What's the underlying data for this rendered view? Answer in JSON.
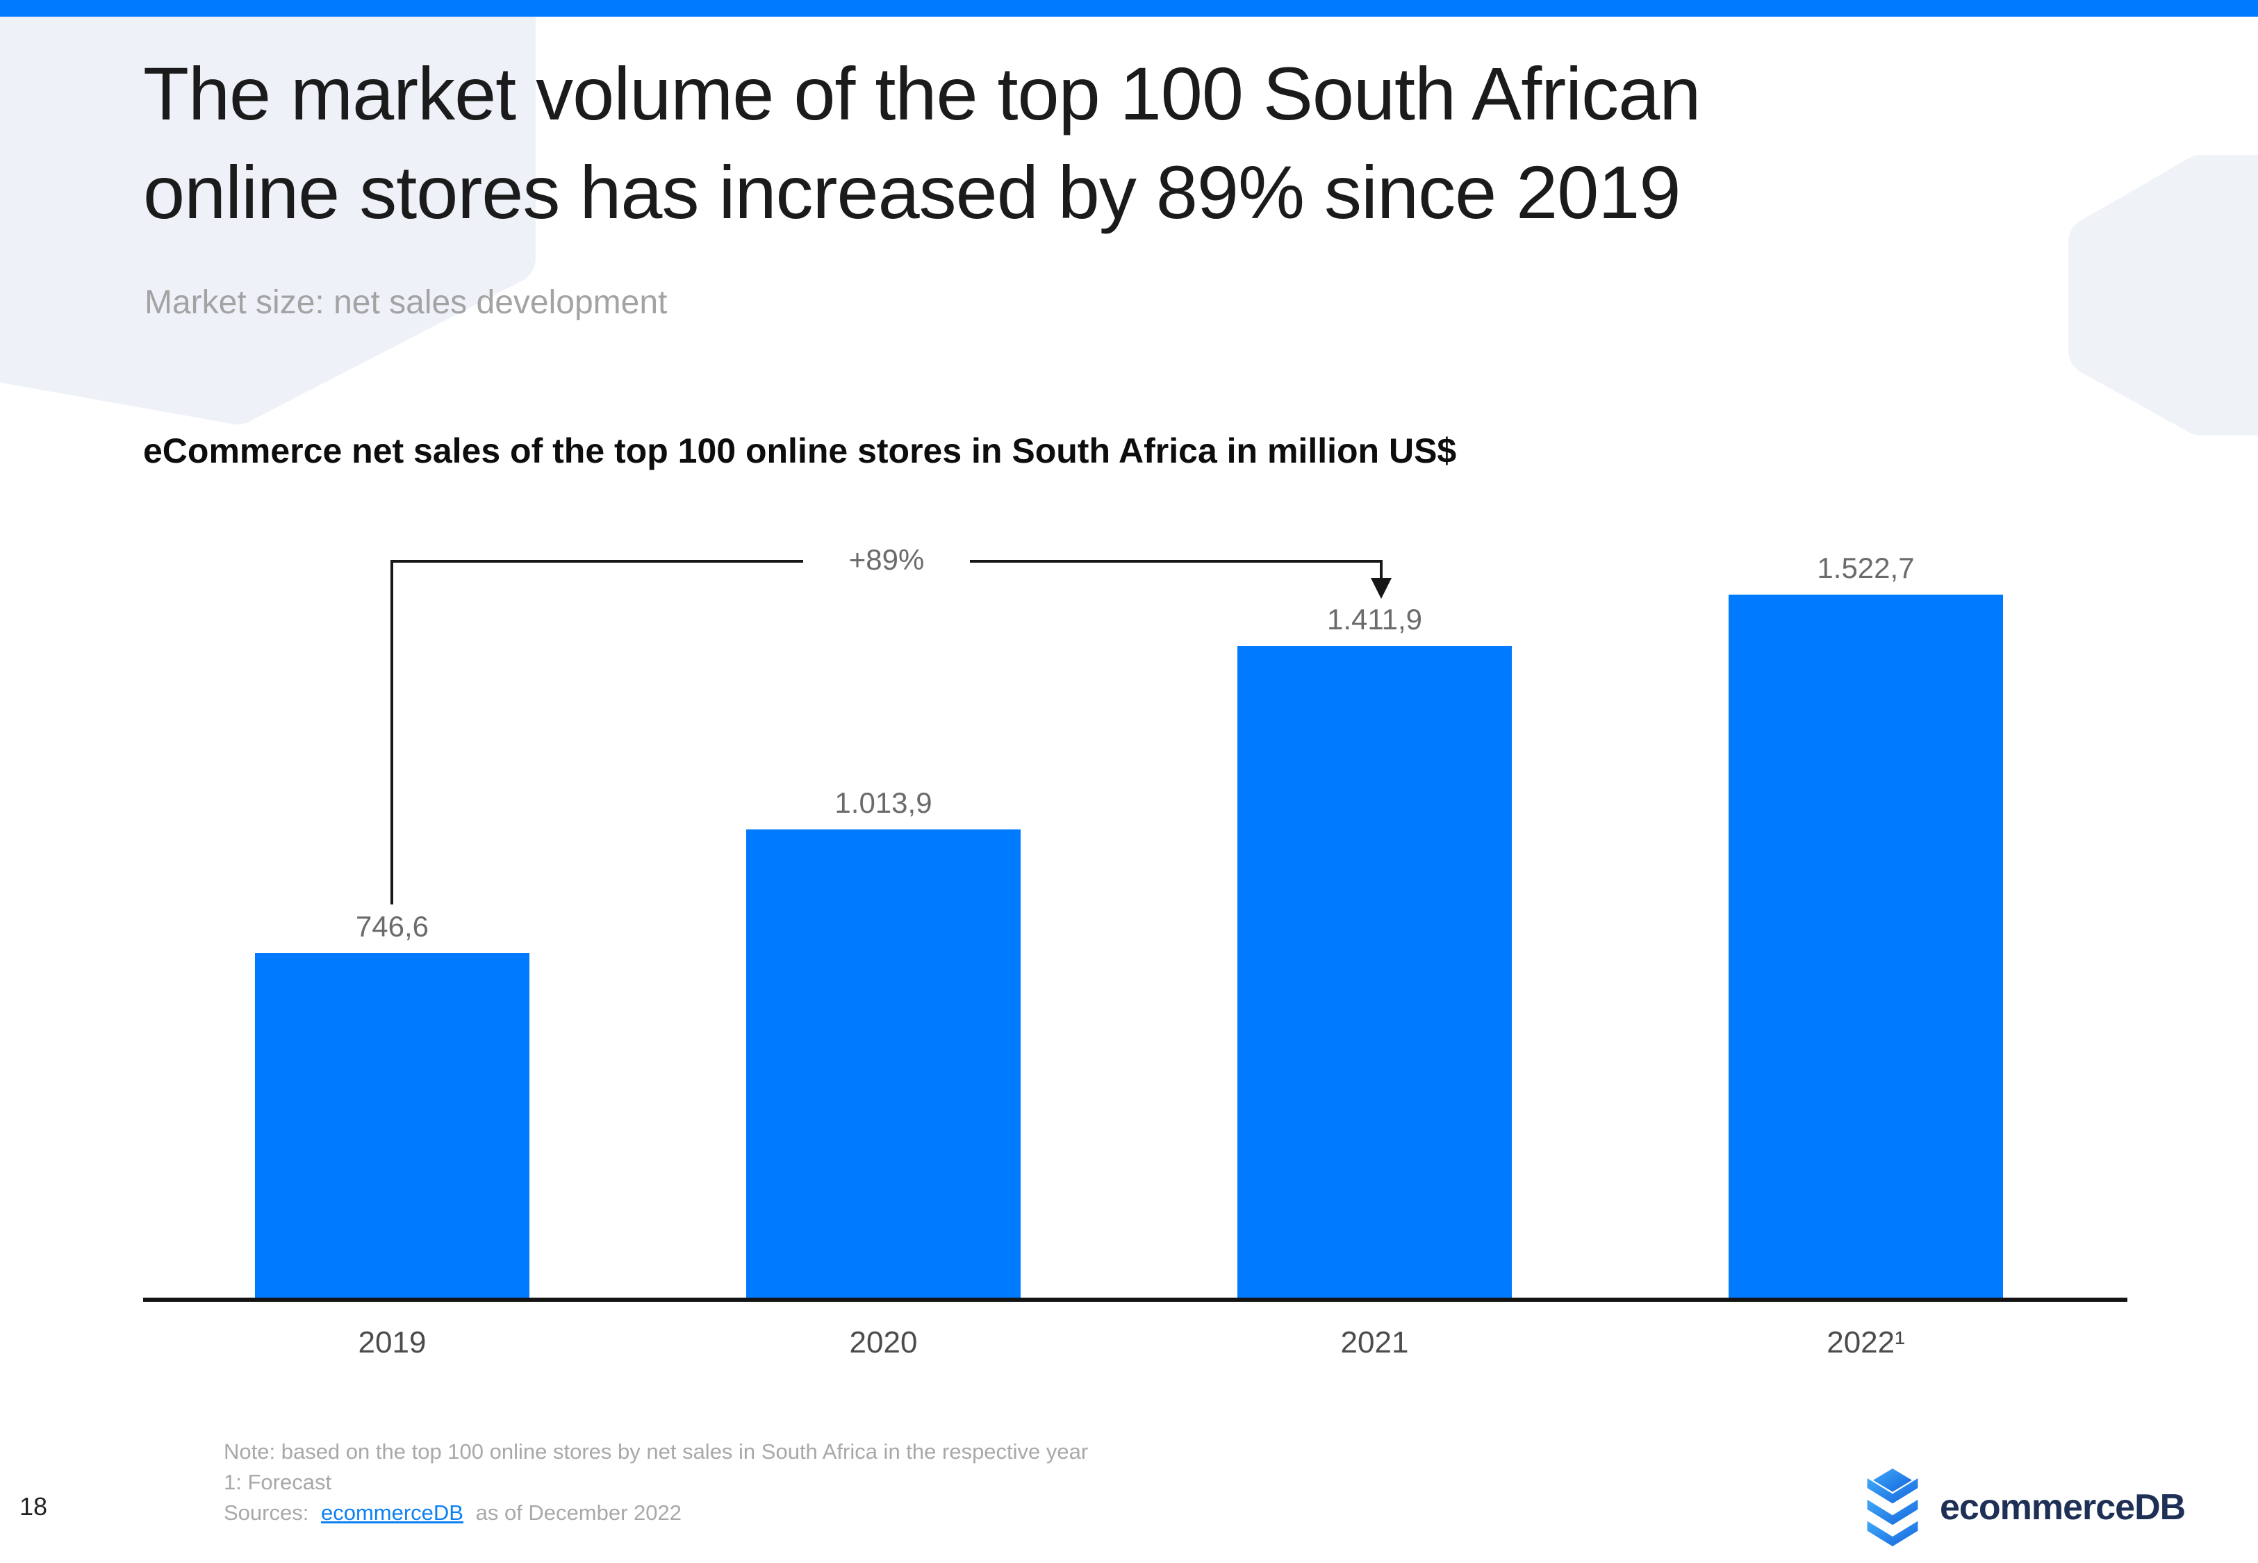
{
  "slide": {
    "title": "The market volume of the top 100 South African online stores has increased by 89% since 2019",
    "title_line1": "The market volume of the top 100 South African",
    "title_line2": "online stores has increased by 89% since 2019",
    "subtitle": "Market size: net sales development",
    "page_number": "18"
  },
  "chart_data": {
    "type": "bar",
    "title": "eCommerce net sales of the top 100 online stores in South Africa in million US$",
    "categories": [
      "2019",
      "2020",
      "2021",
      "2022¹"
    ],
    "values": [
      746.6,
      1013.9,
      1411.9,
      1522.7
    ],
    "value_labels": [
      "746,6",
      "1.013,9",
      "1.411,9",
      "1.522,7"
    ],
    "unit": "million US$",
    "annotation": {
      "label": "+89%",
      "from_category": "2019",
      "to_category": "2021"
    },
    "bar_color": "#007bff",
    "ylim": [
      0,
      1600
    ],
    "grid": false,
    "legend": "none"
  },
  "footer": {
    "note": "Note: based on the top 100 online stores by net sales in South Africa in the respective year",
    "forecast_note": "1: Forecast",
    "sources_prefix": "Sources:",
    "source_link": "ecommerceDB",
    "sources_suffix": "as of December 2022",
    "logo_text": "ecommerceDB"
  },
  "colors": {
    "accent_blue": "#007bff",
    "banner": "#007bff",
    "hexagon_fill": "#eef2f8",
    "logo_navy": "#1e3055",
    "link_blue": "#0d80f2",
    "axis_black": "#141414",
    "value_gray": "#6b6b6b",
    "note_gray": "#a8a8a8"
  }
}
